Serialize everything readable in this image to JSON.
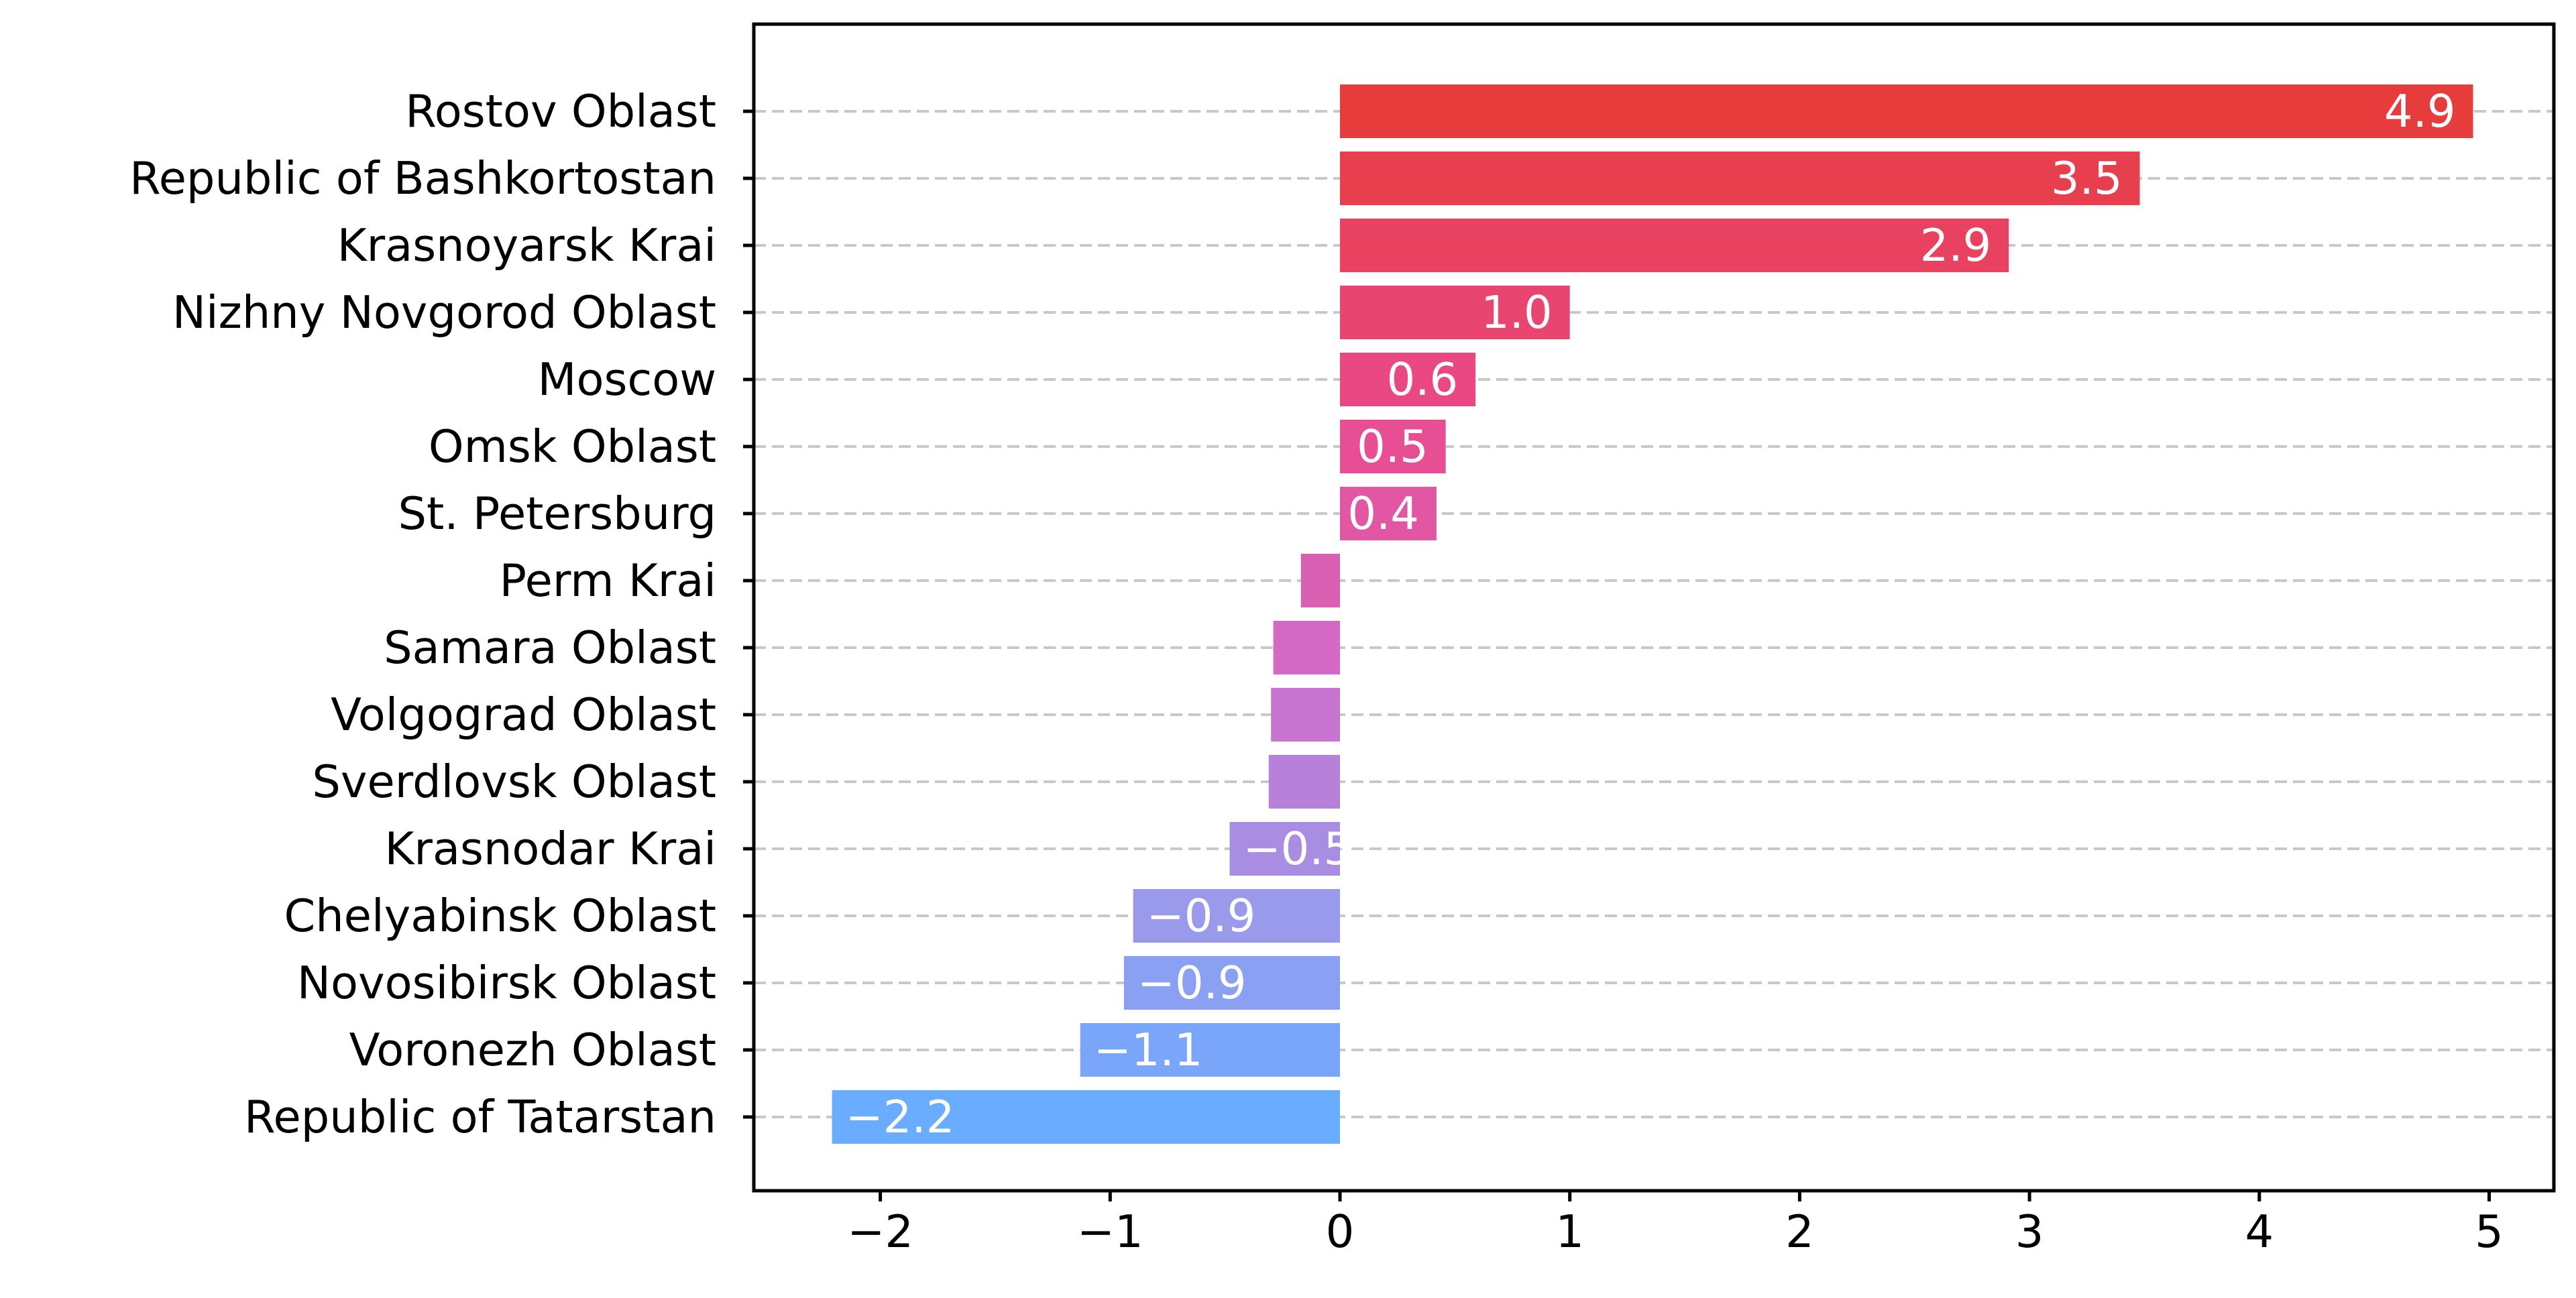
{
  "chart_data": {
    "type": "bar",
    "orientation": "horizontal",
    "categories": [
      "Rostov Oblast",
      "Republic of Bashkortostan",
      "Krasnoyarsk Krai",
      "Nizhny Novgorod Oblast",
      "Moscow",
      "Omsk Oblast",
      "St. Petersburg",
      "Perm Krai",
      "Samara Oblast",
      "Volgograd Oblast",
      "Sverdlovsk Oblast",
      "Krasnodar Krai",
      "Chelyabinsk Oblast",
      "Novosibirsk Oblast",
      "Voronezh Oblast",
      "Republic of Tatarstan"
    ],
    "values": [
      4.93,
      3.48,
      2.91,
      1.0,
      0.59,
      0.46,
      0.42,
      -0.17,
      -0.29,
      -0.3,
      -0.31,
      -0.48,
      -0.9,
      -0.94,
      -1.13,
      -2.21
    ],
    "data_labels": [
      "4.9",
      "3.5",
      "2.9",
      "1.0",
      "0.6",
      "0.5",
      "0.4",
      "",
      "",
      "",
      "",
      "−0.5",
      "−0.9",
      "−0.9",
      "−1.1",
      "−2.2"
    ],
    "xticks": [
      -2,
      -1,
      0,
      1,
      2,
      3,
      4,
      5
    ],
    "xtick_labels": [
      "−2",
      "−1",
      "0",
      "1",
      "2",
      "3",
      "4",
      "5"
    ],
    "xlim": [
      -2.55,
      5.3
    ],
    "grid": "horizontal dashed",
    "colors": {
      "top": "#e63c3c",
      "upper_middle": "#eb4a8c",
      "middle": "#d16bc8",
      "lower_middle": "#9a9aec",
      "bottom": "#6aacff"
    },
    "title": "",
    "xlabel": "",
    "ylabel": ""
  }
}
